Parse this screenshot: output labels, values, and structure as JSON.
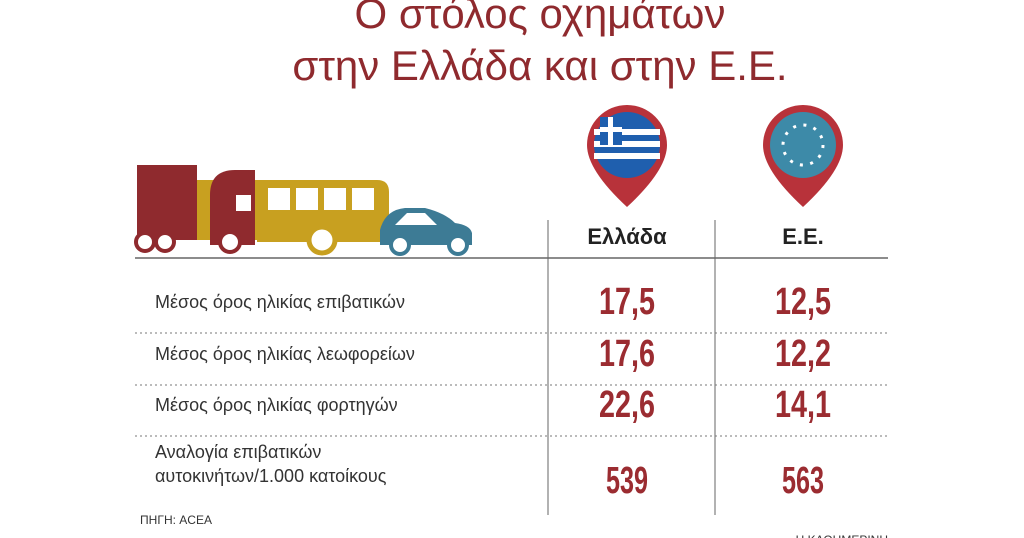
{
  "header": {
    "title_lines": [
      "Ο στόλος οχημάτων",
      "στην Ελλάδα και στην Ε.Ε."
    ]
  },
  "table": {
    "columns": [
      "Ελλάδα",
      "Ε.Ε."
    ],
    "rows": [
      {
        "label_lines": [
          "Μέσος όρος ηλικίας επιβατικών"
        ],
        "values": [
          "17,5",
          "12,5"
        ]
      },
      {
        "label_lines": [
          "Μέσος όρος ηλικίας λεωφορείων"
        ],
        "values": [
          "17,6",
          "12,2"
        ]
      },
      {
        "label_lines": [
          "Μέσος όρος ηλικίας φορτηγών"
        ],
        "values": [
          "22,6",
          "14,1"
        ]
      },
      {
        "label_lines": [
          "Αναλογία επιβατικών",
          "αυτοκινήτων/1.000 κατοίκους"
        ],
        "values": [
          "539",
          "563"
        ]
      }
    ]
  },
  "footer": {
    "source": "ΠΗΓΗ: ACEA",
    "publisher": "Η ΚΑΘΗΜΕΡΙΝΗ"
  }
}
